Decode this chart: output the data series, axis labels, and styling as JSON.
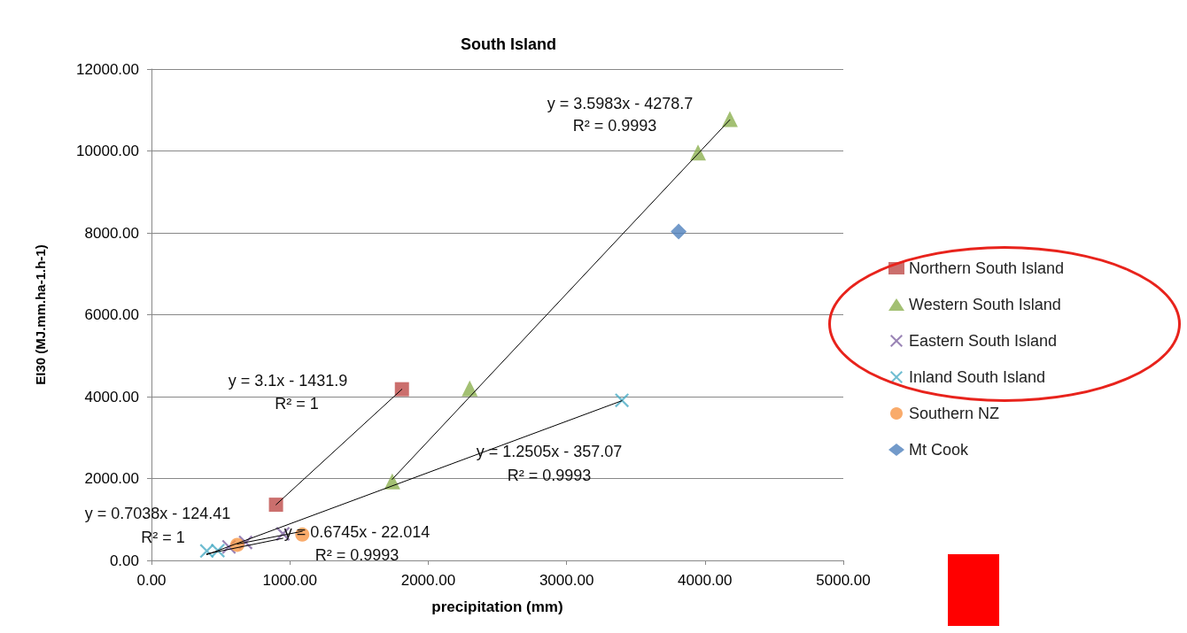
{
  "chart_data": {
    "type": "scatter",
    "title": "South Island",
    "xlabel": "precipitation (mm)",
    "ylabel": "EI30 (MJ.mm.ha-1.h-1)",
    "xlim": [
      0,
      5000
    ],
    "ylim": [
      0,
      12000
    ],
    "xticks": [
      {
        "value": 0,
        "label": "0.00"
      },
      {
        "value": 1000,
        "label": "1000.00"
      },
      {
        "value": 2000,
        "label": "2000.00"
      },
      {
        "value": 3000,
        "label": "3000.00"
      },
      {
        "value": 4000,
        "label": "4000.00"
      },
      {
        "value": 5000,
        "label": "5000.00"
      }
    ],
    "yticks": [
      {
        "value": 0,
        "label": "0.00"
      },
      {
        "value": 2000,
        "label": "2000.00"
      },
      {
        "value": 4000,
        "label": "4000.00"
      },
      {
        "value": 6000,
        "label": "6000.00"
      },
      {
        "value": 8000,
        "label": "8000.00"
      },
      {
        "value": 10000,
        "label": "10000.00"
      },
      {
        "value": 12000,
        "label": "12000.00"
      }
    ],
    "grid": "y",
    "legend": "right",
    "series": [
      {
        "name": "Northern South Island",
        "color": "#be4b48",
        "marker": "square",
        "x": [
          900,
          1810
        ],
        "values": [
          1360,
          4180
        ]
      },
      {
        "name": "Western South Island",
        "color": "#8cb050",
        "marker": "triangle",
        "x": [
          1740,
          2300,
          3950,
          4180
        ],
        "values": [
          1930,
          4200,
          9960,
          10780
        ]
      },
      {
        "name": "Eastern South Island",
        "color": "#8064a2",
        "marker": "cross",
        "x": [
          560,
          680,
          950
        ],
        "values": [
          330,
          440,
          650
        ]
      },
      {
        "name": "Inland South Island",
        "color": "#4bacc6",
        "marker": "cross",
        "x": [
          400,
          480,
          3400
        ],
        "values": [
          230,
          240,
          3910
        ]
      },
      {
        "name": "Southern NZ",
        "color": "#f79646",
        "marker": "circle",
        "x": [
          620,
          1090
        ],
        "values": [
          380,
          630
        ]
      },
      {
        "name": "Mt Cook",
        "color": "#4f81bd",
        "marker": "diamond",
        "x": [
          3810
        ],
        "values": [
          8030
        ]
      },
      {
        "type": "line",
        "color": "#000000",
        "marker": "none",
        "x": [
          900,
          1810
        ],
        "values": [
          1360,
          4180
        ]
      },
      {
        "type": "line",
        "color": "#000000",
        "marker": "none",
        "x": [
          1740,
          4180
        ],
        "values": [
          1980,
          10760
        ]
      },
      {
        "type": "line",
        "color": "#000000",
        "marker": "none",
        "x": [
          400,
          3400
        ],
        "values": [
          140,
          3900
        ]
      },
      {
        "type": "line",
        "color": "#000000",
        "marker": "none",
        "x": [
          400,
          950
        ],
        "values": [
          160,
          540
        ]
      },
      {
        "type": "line",
        "color": "#000000",
        "marker": "none",
        "x": [
          620,
          1090
        ],
        "values": [
          400,
          710
        ]
      }
    ],
    "annotations": [
      "y = 3.5983x - 4278.7",
      "R² = 0.9993",
      "y = 3.1x - 1431.9",
      "R² = 1",
      "y = 1.2505x - 357.07",
      "R² = 0.9993",
      "y = 0.7038x - 124.41",
      "R² = 1",
      "y = 0.6745x - 22.014",
      "R² = 0.9993"
    ]
  }
}
